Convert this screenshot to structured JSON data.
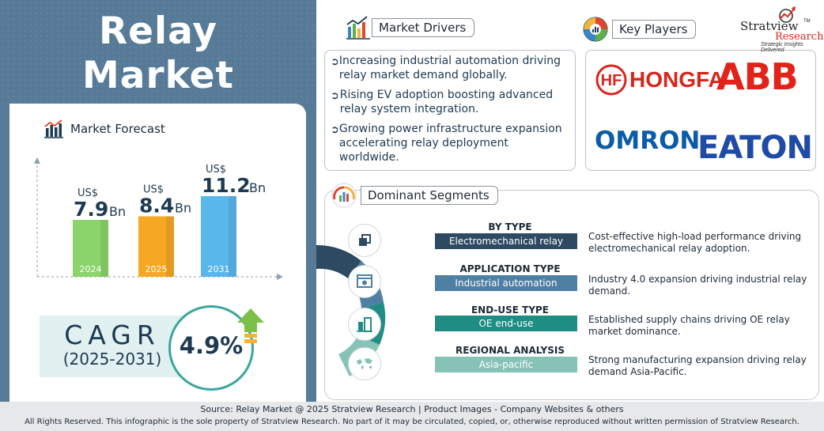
{
  "title": {
    "line1": "Relay",
    "line2": "Market"
  },
  "forecast": {
    "heading": "Market Forecast",
    "bars": [
      {
        "year": "2024",
        "prefix": "US$",
        "value": "7.9",
        "unit": "Bn",
        "amount": 7.9,
        "color": "#8bd46a"
      },
      {
        "year": "2025",
        "prefix": "US$",
        "value": "8.4",
        "unit": "Bn",
        "amount": 8.4,
        "color": "#f6a823"
      },
      {
        "year": "2031",
        "prefix": "US$",
        "value": "11.2",
        "unit": "Bn",
        "amount": 11.2,
        "color": "#5ab7ec"
      }
    ]
  },
  "cagr": {
    "label": "CAGR",
    "period": "(2025-2031)",
    "value": "4.9%"
  },
  "drivers": {
    "heading": "Market Drivers",
    "items": [
      "Increasing industrial automation driving relay market demand globally.",
      "Rising EV adoption boosting advanced relay system integration.",
      "Growing power infrastructure expansion accelerating relay deployment worldwide."
    ]
  },
  "players": {
    "heading": "Key Players",
    "brands": [
      "HONGFA",
      "ABB",
      "OMRON",
      "EATON"
    ]
  },
  "brand_logo": {
    "name_line1": "Stratview",
    "name_line2": "Research",
    "tagline": "Strategic Insights Delivered",
    "mark": "TM"
  },
  "segments": {
    "heading": "Dominant Segments",
    "items": [
      {
        "category": "BY TYPE",
        "value": "Electromechanical relay",
        "description": "Cost-effective high-load performance driving electromechanical relay adoption.",
        "color": "#2e4a63",
        "icon": "layers-icon"
      },
      {
        "category": "APPLICATION TYPE",
        "value": "Industrial automation",
        "description": "Industry 4.0 expansion driving industrial relay demand.",
        "color": "#4f7fa2",
        "icon": "settings-window-icon"
      },
      {
        "category": "END-USE TYPE",
        "value": "OE end-use",
        "description": "Established supply chains driving OE relay market dominance.",
        "color": "#1f8d84",
        "icon": "buildings-icon"
      },
      {
        "category": "REGIONAL ANALYSIS",
        "value": "Asia-pacific",
        "description": "Strong manufacturing expansion driving relay demand Asia-Pacific.",
        "color": "#86c3b6",
        "icon": "world-map-icon"
      }
    ]
  },
  "footer": {
    "source": "Source:  Relay Market @ 2025 Stratview Research | Product Images  - Company Websites & others",
    "rights": "All Rights Reserved. This infographic is the sole property of Stratview Research. No part of it may be circulated, copied, or, otherwise reproduced without written permission of Stratview Research."
  }
}
